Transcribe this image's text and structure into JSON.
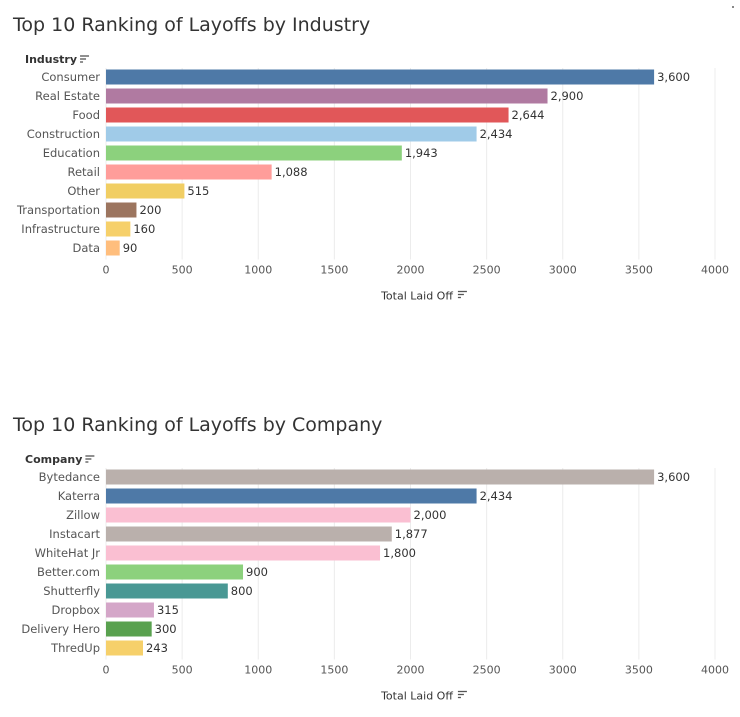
{
  "chart_data": [
    {
      "id": "industry",
      "type": "bar",
      "orientation": "horizontal",
      "title": "Top 10 Ranking of Layoffs by Industry",
      "dimension_label": "Industry",
      "xlabel": "Total Laid Off",
      "categories": [
        "Consumer",
        "Real Estate",
        "Food",
        "Construction",
        "Education",
        "Retail",
        "Other",
        "Transportation",
        "Infrastructure",
        "Data"
      ],
      "values": [
        3600,
        2900,
        2644,
        2434,
        1943,
        1088,
        515,
        200,
        160,
        90
      ],
      "value_labels": [
        "3,600",
        "2,900",
        "2,644",
        "2,434",
        "1,943",
        "1,088",
        "515",
        "200",
        "160",
        "90"
      ],
      "colors": [
        "#4e79a7",
        "#b07aa1",
        "#e15759",
        "#a0cbe8",
        "#8cd17d",
        "#ff9d9a",
        "#f1ce63",
        "#9c755f",
        "#f6d06a",
        "#ffbe7d"
      ],
      "xlim": [
        0,
        4000
      ],
      "xticks": [
        "0",
        "500",
        "1000",
        "1500",
        "2000",
        "2500",
        "3000",
        "3500",
        "4000"
      ],
      "grid": true,
      "legend": "none"
    },
    {
      "id": "company",
      "type": "bar",
      "orientation": "horizontal",
      "title": "Top 10 Ranking of Layoffs by Company",
      "dimension_label": "Company",
      "xlabel": "Total Laid Off",
      "categories": [
        "Bytedance",
        "Katerra",
        "Zillow",
        "Instacart",
        "WhiteHat Jr",
        "Better.com",
        "Shutterfly",
        "Dropbox",
        "Delivery Hero",
        "ThredUp"
      ],
      "values": [
        3600,
        2434,
        2000,
        1877,
        1800,
        900,
        800,
        315,
        300,
        243
      ],
      "value_labels": [
        "3,600",
        "2,434",
        "2,000",
        "1,877",
        "1,800",
        "900",
        "800",
        "315",
        "300",
        "243"
      ],
      "colors": [
        "#bab0ac",
        "#4e79a7",
        "#fabfd2",
        "#bab0ac",
        "#fabfd2",
        "#8cd17d",
        "#499894",
        "#d4a6c8",
        "#59a14f",
        "#f6d06a"
      ],
      "xlim": [
        0,
        4000
      ],
      "xticks": [
        "0",
        "500",
        "1000",
        "1500",
        "2000",
        "2500",
        "3000",
        "3500",
        "4000"
      ],
      "grid": true,
      "legend": "none"
    }
  ]
}
